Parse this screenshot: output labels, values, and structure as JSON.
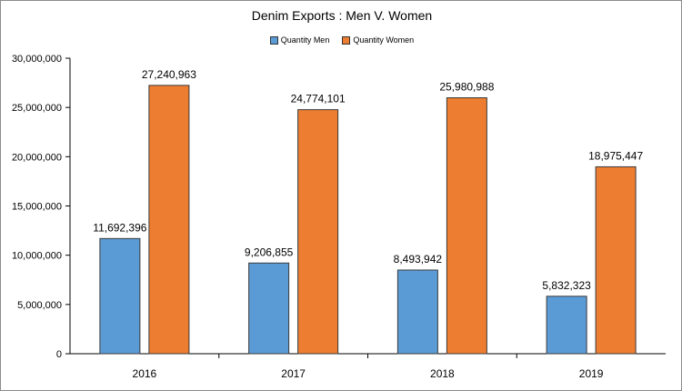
{
  "chart_data": {
    "type": "bar",
    "title": "Denim Exports : Men V. Women",
    "categories": [
      "2016",
      "2017",
      "2018",
      "2019"
    ],
    "series": [
      {
        "name": "Quantity Men",
        "color": "#5b9bd5",
        "values": [
          11692396,
          9206855,
          8493942,
          5832323
        ],
        "labels": [
          "11,692,396",
          "9,206,855",
          "8,493,942",
          "5,832,323"
        ]
      },
      {
        "name": "Quantity Women",
        "color": "#ed7d31",
        "values": [
          27240963,
          24774101,
          25980988,
          18975447
        ],
        "labels": [
          "27,240,963",
          "24,774,101",
          "25,980,988",
          "18,975,447"
        ]
      }
    ],
    "ylim": [
      0,
      30000000
    ],
    "yticks": [
      0,
      5000000,
      10000000,
      15000000,
      20000000,
      25000000,
      30000000
    ],
    "ytick_labels": [
      "0",
      "5,000,000",
      "10,000,000",
      "15,000,000",
      "20,000,000",
      "25,000,000",
      "30,000,000"
    ],
    "grid": false,
    "legend": "top-center"
  }
}
